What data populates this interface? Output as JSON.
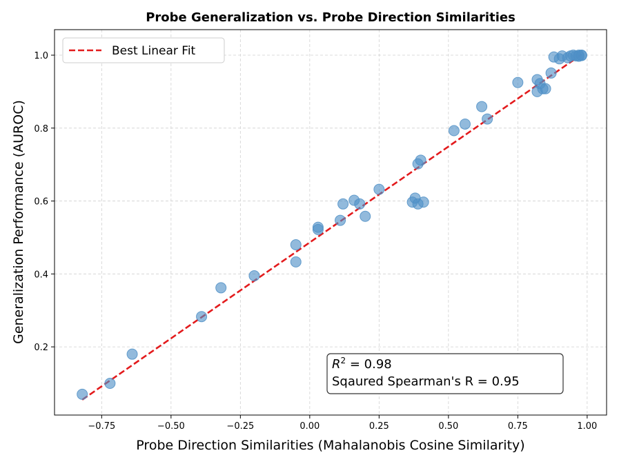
{
  "chart_data": {
    "type": "scatter",
    "title": "Probe Generalization vs. Probe Direction Similarities",
    "xlabel": "Probe Direction Similarities (Mahalanobis Cosine Similarity)",
    "ylabel": "Generalization Performance (AUROC)",
    "xlim": [
      -0.92,
      1.07
    ],
    "ylim": [
      0.013,
      1.07
    ],
    "grid": true,
    "x_ticks": [
      -0.75,
      -0.5,
      -0.25,
      0.0,
      0.25,
      0.5,
      0.75,
      1.0
    ],
    "x_tick_labels": [
      "−0.75",
      "−0.50",
      "−0.25",
      "0.00",
      "0.25",
      "0.50",
      "0.75",
      "1.00"
    ],
    "y_ticks": [
      0.2,
      0.4,
      0.6,
      0.8,
      1.0
    ],
    "y_tick_labels": [
      "0.2",
      "0.4",
      "0.6",
      "0.8",
      "1.0"
    ],
    "point_color": "#4f8fc6",
    "fit_color": "#e31a1c",
    "series": [
      {
        "name": "points",
        "x": [
          -0.82,
          -0.72,
          -0.64,
          -0.39,
          -0.32,
          -0.2,
          -0.05,
          -0.05,
          0.03,
          0.03,
          0.11,
          0.12,
          0.16,
          0.18,
          0.2,
          0.25,
          0.37,
          0.38,
          0.39,
          0.41,
          0.39,
          0.4,
          0.52,
          0.56,
          0.62,
          0.64,
          0.75,
          0.82,
          0.82,
          0.83,
          0.84,
          0.85,
          0.87,
          0.88,
          0.9,
          0.91,
          0.93,
          0.94,
          0.95,
          0.96,
          0.97,
          0.97,
          0.98,
          0.98
        ],
        "y": [
          0.07,
          0.1,
          0.18,
          0.283,
          0.362,
          0.395,
          0.433,
          0.48,
          0.522,
          0.528,
          0.547,
          0.592,
          0.602,
          0.592,
          0.558,
          0.632,
          0.597,
          0.608,
          0.592,
          0.597,
          0.702,
          0.712,
          0.793,
          0.811,
          0.859,
          0.825,
          0.925,
          0.9,
          0.933,
          0.922,
          0.908,
          0.908,
          0.951,
          0.995,
          0.99,
          0.998,
          0.993,
          0.998,
          1.0,
          0.998,
          0.997,
          1.0,
          0.999,
          1.0
        ]
      }
    ],
    "fit_line": {
      "x": [
        -0.82,
        0.98
      ],
      "y": [
        0.055,
        1.002
      ]
    },
    "legend": {
      "label": "Best Linear Fit",
      "placement": "top-left"
    },
    "annotation": {
      "r2_label": "R",
      "r2_sup": "2",
      "r2_value": " = 0.98",
      "spearman_text": "Sqaured Spearman's R = 0.95",
      "placement": "bottom-right"
    }
  }
}
